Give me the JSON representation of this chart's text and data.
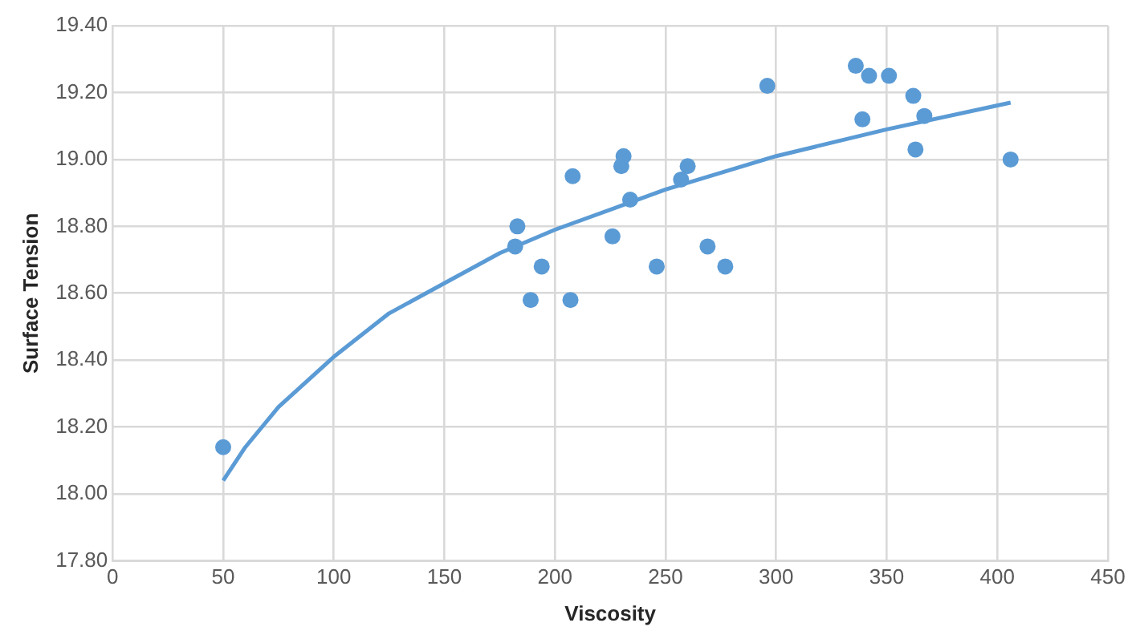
{
  "chart_data": {
    "type": "scatter",
    "xlabel": "Viscosity",
    "ylabel": "Surface Tension",
    "marker": "circle",
    "grid": true,
    "legend": false,
    "xlim": [
      0,
      450
    ],
    "xticks": [
      0,
      50,
      100,
      150,
      200,
      250,
      300,
      350,
      400,
      450
    ],
    "ylim": [
      17.8,
      19.4
    ],
    "yticks": [
      {
        "value": 17.8,
        "label": "17.80"
      },
      {
        "value": 18,
        "label": "18.00"
      },
      {
        "value": 18.2,
        "label": "18.20"
      },
      {
        "value": 18.4,
        "label": "18.40"
      },
      {
        "value": 18.6,
        "label": "18.60"
      },
      {
        "value": 18.8,
        "label": "18.80"
      },
      {
        "value": 19,
        "label": "19.00"
      },
      {
        "value": 19.2,
        "label": "19.20"
      },
      {
        "value": 19.4,
        "label": "19.40"
      }
    ],
    "series": [
      {
        "type": "scatter",
        "color": "#5b9bd5",
        "x": [
          50,
          183,
          182,
          194,
          189,
          207,
          208,
          226,
          230,
          231,
          234,
          257,
          260,
          246,
          269,
          277,
          296,
          336,
          342,
          351,
          339,
          362,
          367,
          363,
          406
        ],
        "values": [
          18.14,
          18.8,
          18.74,
          18.68,
          18.58,
          18.58,
          18.95,
          18.77,
          18.98,
          19.01,
          18.88,
          18.94,
          18.98,
          18.68,
          18.74,
          18.68,
          19.22,
          19.28,
          19.25,
          19.25,
          19.12,
          19.19,
          19.13,
          19.03,
          19.0
        ]
      },
      {
        "type": "line",
        "color": "#5b9bd5",
        "marker": "none",
        "line_style": "solid",
        "x": [
          50,
          60,
          75,
          100,
          125,
          150,
          175,
          200,
          250,
          300,
          350,
          406
        ],
        "values": [
          18.04,
          18.14,
          18.26,
          18.41,
          18.54,
          18.63,
          18.72,
          18.79,
          18.91,
          19.01,
          19.09,
          19.17
        ]
      }
    ]
  }
}
